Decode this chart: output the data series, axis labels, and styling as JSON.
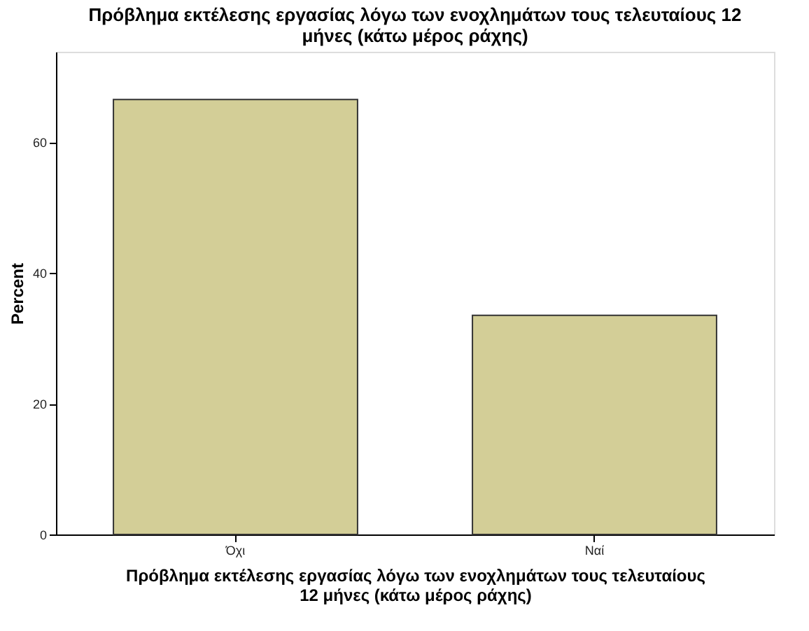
{
  "chart_data": {
    "type": "bar",
    "title": "Πρόβλημα εκτέλεσης εργασίας λόγω των ενοχλημάτων τους τελευταίους 12 μήνες (κάτω μέρος ράχης)",
    "xlabel": "Πρόβλημα εκτέλεσης εργασίας λόγω των ενοχλημάτων τους τελευταίους 12 μήνες (κάτω μέρος ράχης)",
    "ylabel": "Percent",
    "categories": [
      "Όχι",
      "Ναί"
    ],
    "values": [
      66.5,
      33.5
    ],
    "color": "#d3ce97",
    "ylim": [
      0,
      73.8
    ],
    "yticks": [
      0,
      20,
      40,
      60
    ],
    "grid": false
  }
}
